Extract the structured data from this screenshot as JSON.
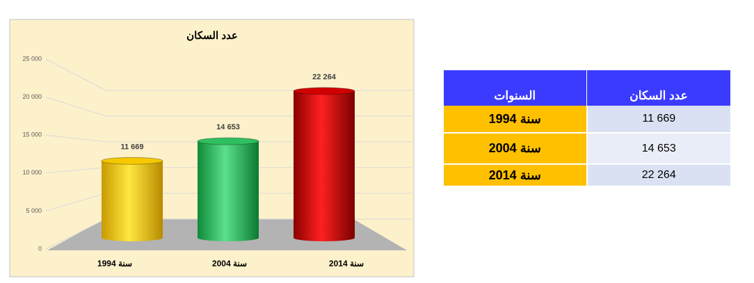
{
  "chart_data": {
    "type": "bar",
    "title": "عدد السكان",
    "categories": [
      "سنة 1994",
      "سنة 2004",
      "سنة 2014"
    ],
    "values": [
      11669,
      14653,
      22264
    ],
    "value_labels": [
      "11 669",
      "14 653",
      "22 264"
    ],
    "colors": [
      "#f5c800",
      "#2fbf5f",
      "#d10000"
    ],
    "ylim": [
      0,
      25000
    ],
    "yticks": [
      0,
      {
        "value": 5000,
        "label": "5 000"
      },
      {
        "value": 10000,
        "label": "10 000"
      },
      {
        "value": 15000,
        "label": "15 000"
      },
      {
        "value": 20000,
        "label": "20 000"
      },
      {
        "value": 25000,
        "label": "25 000"
      }
    ],
    "grid": true
  },
  "table": {
    "header": [
      "السنوات",
      "عدد السكان"
    ],
    "rows": [
      [
        "سنة 1994",
        "11 669"
      ],
      [
        "سنة 2004",
        "14 653"
      ],
      [
        "سنة 2014",
        "22 264"
      ]
    ]
  }
}
